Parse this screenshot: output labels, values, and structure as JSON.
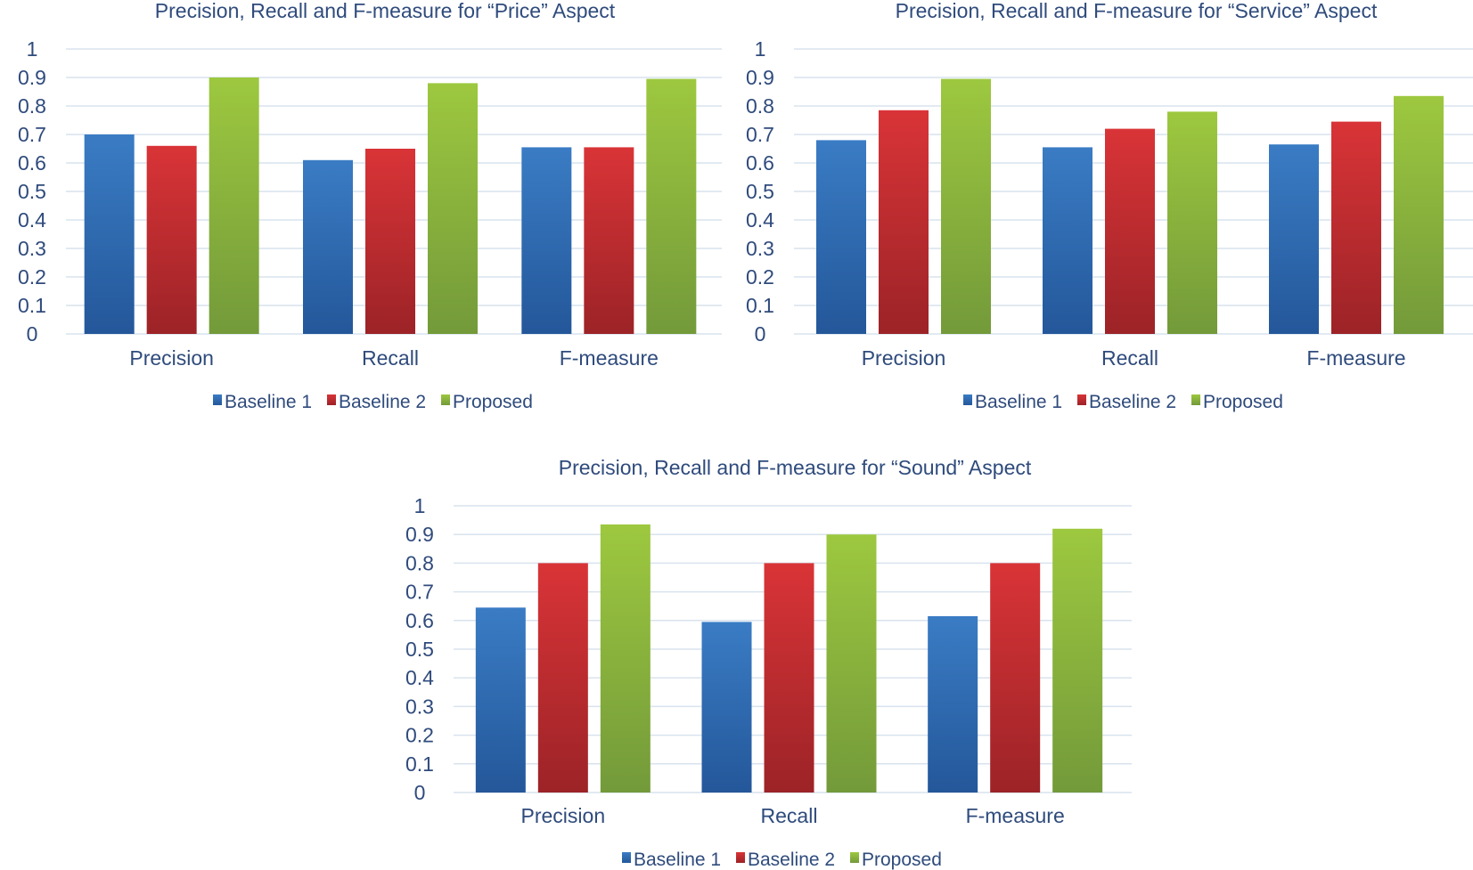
{
  "chart_data": [
    {
      "type": "bar",
      "title": "Precision, Recall and F-measure for “Price” Aspect",
      "categories": [
        "Precision",
        "Recall",
        "F-measure"
      ],
      "series": [
        {
          "name": "Baseline 1",
          "values": [
            0.7,
            0.61,
            0.655
          ]
        },
        {
          "name": "Baseline 2",
          "values": [
            0.66,
            0.65,
            0.655
          ]
        },
        {
          "name": "Proposed",
          "values": [
            0.9,
            0.88,
            0.895
          ]
        }
      ],
      "ylim": [
        0,
        1
      ],
      "yticks": [
        "0",
        "0.1",
        "0.2",
        "0.3",
        "0.4",
        "0.5",
        "0.6",
        "0.7",
        "0.8",
        "0.9",
        "1"
      ],
      "grid": true,
      "legend": "bottom"
    },
    {
      "type": "bar",
      "title": "Precision, Recall and F-measure for “Service” Aspect",
      "categories": [
        "Precision",
        "Recall",
        "F-measure"
      ],
      "series": [
        {
          "name": "Baseline 1",
          "values": [
            0.68,
            0.655,
            0.665
          ]
        },
        {
          "name": "Baseline 2",
          "values": [
            0.785,
            0.72,
            0.745
          ]
        },
        {
          "name": "Proposed",
          "values": [
            0.895,
            0.78,
            0.835
          ]
        }
      ],
      "ylim": [
        0,
        1
      ],
      "yticks": [
        "0",
        "0.1",
        "0.2",
        "0.3",
        "0.4",
        "0.5",
        "0.6",
        "0.7",
        "0.8",
        "0.9",
        "1"
      ],
      "grid": true,
      "legend": "bottom"
    },
    {
      "type": "bar",
      "title": "Precision, Recall and F-measure for “Sound” Aspect",
      "categories": [
        "Precision",
        "Recall",
        "F-measure"
      ],
      "series": [
        {
          "name": "Baseline 1",
          "values": [
            0.645,
            0.595,
            0.615
          ]
        },
        {
          "name": "Baseline 2",
          "values": [
            0.8,
            0.8,
            0.8
          ]
        },
        {
          "name": "Proposed",
          "values": [
            0.935,
            0.9,
            0.92
          ]
        }
      ],
      "ylim": [
        0,
        1
      ],
      "yticks": [
        "0",
        "0.1",
        "0.2",
        "0.3",
        "0.4",
        "0.5",
        "0.6",
        "0.7",
        "0.8",
        "0.9",
        "1"
      ],
      "grid": true,
      "legend": "bottom"
    }
  ],
  "colors": {
    "Baseline 1": [
      "#3a7cc4",
      "#24579a"
    ],
    "Baseline 2": [
      "#d93437",
      "#9c2327"
    ],
    "Proposed": [
      "#9dc83f",
      "#739a3a"
    ],
    "text": "#2f4b7c",
    "grid": "#d9e3ee"
  }
}
